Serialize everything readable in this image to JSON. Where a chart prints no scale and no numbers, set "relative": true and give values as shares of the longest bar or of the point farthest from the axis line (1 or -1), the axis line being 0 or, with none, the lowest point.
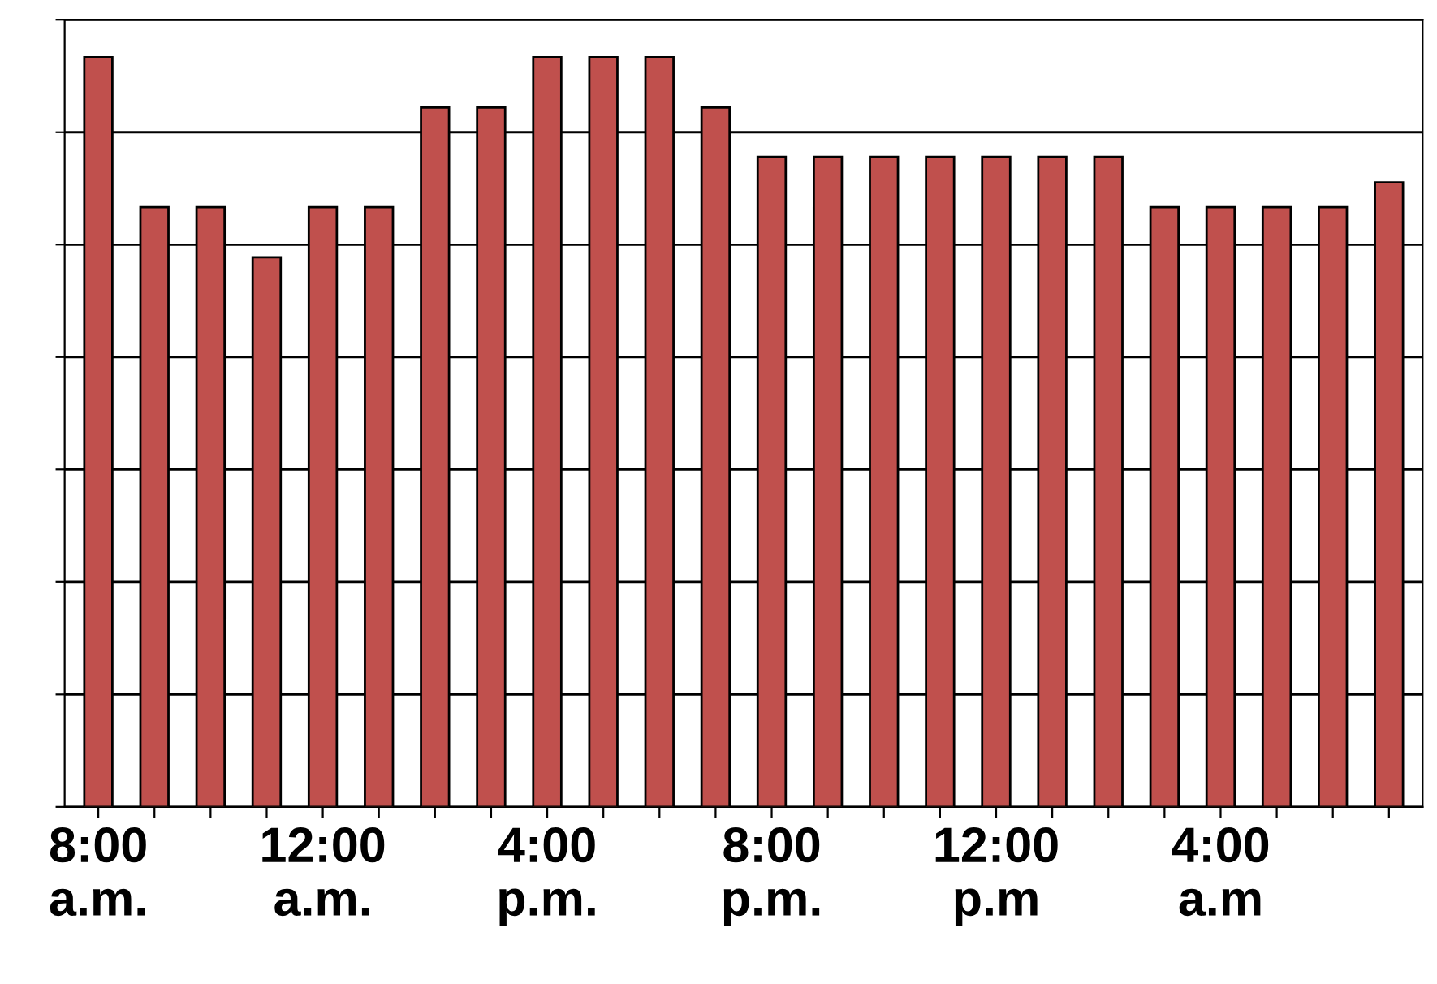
{
  "chart_data": {
    "type": "bar",
    "relative": true,
    "grid": "y",
    "categories": [
      "8:00\na.m.",
      null,
      null,
      null,
      "12:00\na.m.",
      null,
      null,
      null,
      "4:00\np.m.",
      null,
      null,
      null,
      "8:00\np.m.",
      null,
      null,
      null,
      "12:00\np.m",
      null,
      null,
      null,
      "4:00\na.m",
      null,
      null,
      null
    ],
    "values": [
      1,
      0.8,
      0.8,
      0.733,
      0.8,
      0.8,
      0.933,
      0.933,
      1,
      1,
      1,
      0.933,
      0.867,
      0.867,
      0.867,
      0.867,
      0.867,
      0.867,
      0.867,
      0.8,
      0.8,
      0.8,
      0.8,
      0.833
    ],
    "color": "#c0504d"
  }
}
